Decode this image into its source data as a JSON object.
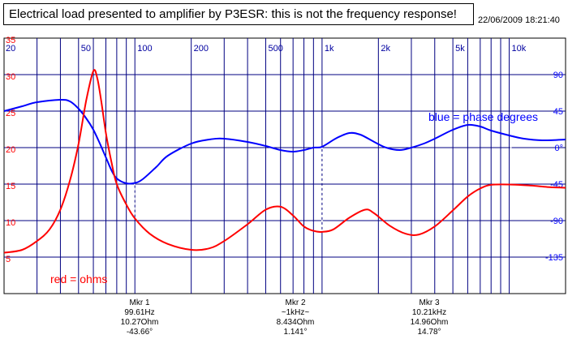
{
  "title": "Electrical load presented to amplifier by P3ESR: this is not the frequency response!",
  "timestamp": "22/06/2009 18:21:40",
  "colors": {
    "ohms": "#ff0000",
    "phase": "#0000ff",
    "grid": "#000080",
    "left_ticks": "#ff0000",
    "right_ticks": "#0000ff",
    "x_ticks": "#0000a0"
  },
  "markers": [
    {
      "label": "Mkr 1",
      "freq": "99.61Hz",
      "impedance": "10.27Ohm",
      "phase": "-43.66°"
    },
    {
      "label": "Mkr 2",
      "freq": "~1kHz~",
      "impedance": "8.434Ohm",
      "phase": "1.141°"
    },
    {
      "label": "Mkr 3",
      "freq": "10.21kHz",
      "impedance": "14.96Ohm",
      "phase": "14.78°"
    }
  ],
  "chart_data": {
    "type": "line",
    "x_scale": "log",
    "xlim": [
      20,
      20000
    ],
    "x_tick_labels": [
      {
        "value": 20,
        "label": "20"
      },
      {
        "value": 50,
        "label": "50"
      },
      {
        "value": 100,
        "label": "100"
      },
      {
        "value": 200,
        "label": "200"
      },
      {
        "value": 500,
        "label": "500"
      },
      {
        "value": 1000,
        "label": "1k"
      },
      {
        "value": 2000,
        "label": "2k"
      },
      {
        "value": 5000,
        "label": "5k"
      },
      {
        "value": 10000,
        "label": "10k"
      }
    ],
    "y_left": {
      "label": "ohms",
      "ylim": [
        0,
        35
      ],
      "ticks": [
        5,
        10,
        15,
        20,
        25,
        30,
        35
      ]
    },
    "y_right": {
      "label": "degrees",
      "ylim": [
        -180,
        135
      ],
      "ticks": [
        -135,
        -90,
        -45,
        0,
        45,
        90
      ]
    },
    "annotations": {
      "phase": "blue = phase degrees",
      "ohms": "red = ohms"
    },
    "series": [
      {
        "name": "ohms",
        "axis": "left",
        "points": [
          [
            20,
            5.6
          ],
          [
            25,
            6.0
          ],
          [
            30,
            7.2
          ],
          [
            35,
            8.8
          ],
          [
            40,
            11.5
          ],
          [
            45,
            15.5
          ],
          [
            50,
            20.5
          ],
          [
            55,
            26.5
          ],
          [
            60,
            30.5
          ],
          [
            63,
            29.5
          ],
          [
            66,
            26.5
          ],
          [
            70,
            22.0
          ],
          [
            75,
            18.0
          ],
          [
            80,
            15.0
          ],
          [
            90,
            12.2
          ],
          [
            100,
            10.3
          ],
          [
            120,
            8.2
          ],
          [
            150,
            6.8
          ],
          [
            200,
            6.0
          ],
          [
            250,
            6.2
          ],
          [
            300,
            7.2
          ],
          [
            400,
            9.5
          ],
          [
            500,
            11.5
          ],
          [
            600,
            11.9
          ],
          [
            700,
            10.7
          ],
          [
            800,
            9.2
          ],
          [
            900,
            8.6
          ],
          [
            1000,
            8.45
          ],
          [
            1150,
            8.8
          ],
          [
            1400,
            10.4
          ],
          [
            1700,
            11.5
          ],
          [
            1900,
            11.0
          ],
          [
            2300,
            9.3
          ],
          [
            2800,
            8.2
          ],
          [
            3300,
            8.1
          ],
          [
            4000,
            9.2
          ],
          [
            5000,
            11.4
          ],
          [
            6000,
            13.3
          ],
          [
            7000,
            14.4
          ],
          [
            8000,
            14.9
          ],
          [
            10000,
            14.95
          ],
          [
            13000,
            14.8
          ],
          [
            16000,
            14.6
          ],
          [
            20000,
            14.5
          ]
        ]
      },
      {
        "name": "phase",
        "axis": "right",
        "points": [
          [
            20,
            45
          ],
          [
            25,
            51
          ],
          [
            30,
            56
          ],
          [
            40,
            59
          ],
          [
            45,
            57
          ],
          [
            50,
            48
          ],
          [
            55,
            36
          ],
          [
            60,
            22
          ],
          [
            65,
            5
          ],
          [
            70,
            -12
          ],
          [
            75,
            -28
          ],
          [
            80,
            -38
          ],
          [
            90,
            -44
          ],
          [
            100,
            -43.6
          ],
          [
            110,
            -39
          ],
          [
            130,
            -24
          ],
          [
            150,
            -10
          ],
          [
            200,
            5
          ],
          [
            250,
            10
          ],
          [
            300,
            11
          ],
          [
            400,
            7
          ],
          [
            500,
            2
          ],
          [
            600,
            -3
          ],
          [
            700,
            -5
          ],
          [
            800,
            -3
          ],
          [
            900,
            0
          ],
          [
            1000,
            1.1
          ],
          [
            1200,
            12
          ],
          [
            1400,
            18
          ],
          [
            1600,
            16
          ],
          [
            1900,
            7
          ],
          [
            2200,
            0
          ],
          [
            2600,
            -3
          ],
          [
            3000,
            0
          ],
          [
            3500,
            5
          ],
          [
            4000,
            11
          ],
          [
            5000,
            22
          ],
          [
            6000,
            28
          ],
          [
            7000,
            26
          ],
          [
            8000,
            21
          ],
          [
            10000,
            15
          ],
          [
            12000,
            11
          ],
          [
            15000,
            9
          ],
          [
            20000,
            10
          ]
        ]
      }
    ],
    "marker_freqs": [
      99.61,
      1000,
      10210
    ]
  }
}
